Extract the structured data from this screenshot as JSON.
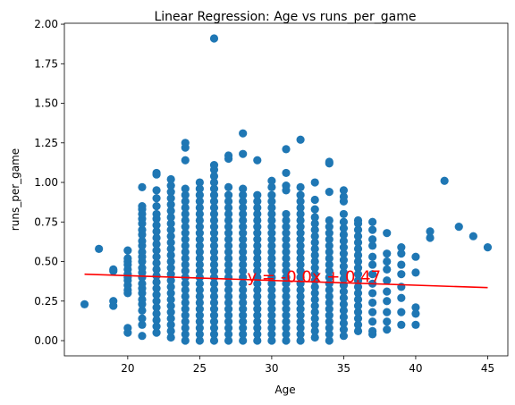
{
  "chart_data": {
    "type": "scatter",
    "title": "Linear Regression: Age vs runs_per_game",
    "xlabel": "Age",
    "ylabel": "runs_per_game",
    "xlim": [
      15.6,
      46.4
    ],
    "ylim": [
      -0.096,
      2.006
    ],
    "xticks": [
      20,
      25,
      30,
      35,
      40,
      45
    ],
    "yticks": [
      0.0,
      0.25,
      0.5,
      0.75,
      1.0,
      1.25,
      1.5,
      1.75,
      2.0
    ],
    "xtick_labels": [
      "20",
      "25",
      "30",
      "35",
      "40",
      "45"
    ],
    "ytick_labels": [
      "0.00",
      "0.25",
      "0.50",
      "0.75",
      "1.00",
      "1.25",
      "1.50",
      "1.75",
      "2.00"
    ],
    "grid": false,
    "point_color": "#1f77b4",
    "line_color": "#ff0000",
    "annotation": {
      "text": "y = -0.0x + 0.47",
      "x": 28.3,
      "y": 0.37,
      "color": "#ff0000"
    },
    "regression_line": {
      "x": [
        17,
        45
      ],
      "y": [
        0.42,
        0.335
      ]
    },
    "columns": [
      {
        "x": 17,
        "values": [
          0.23
        ]
      },
      {
        "x": 18,
        "values": [
          0.58
        ]
      },
      {
        "x": 19,
        "values": [
          0.22,
          0.25,
          0.44,
          0.45
        ]
      },
      {
        "x": 20,
        "values": [
          0.05,
          0.08,
          0.3,
          0.32,
          0.35,
          0.38,
          0.4,
          0.42,
          0.45,
          0.48,
          0.5,
          0.52,
          0.57
        ]
      },
      {
        "x": 21,
        "values": [
          0.03,
          0.1,
          0.14,
          0.19,
          0.23,
          0.26,
          0.3,
          0.33,
          0.36,
          0.4,
          0.43,
          0.46,
          0.5,
          0.53,
          0.56,
          0.6,
          0.63,
          0.67,
          0.7,
          0.74,
          0.77,
          0.8,
          0.83,
          0.85,
          0.97
        ]
      },
      {
        "x": 22,
        "values": [
          0.05,
          0.09,
          0.13,
          0.17,
          0.21,
          0.25,
          0.29,
          0.33,
          0.37,
          0.41,
          0.45,
          0.49,
          0.53,
          0.57,
          0.61,
          0.65,
          0.69,
          0.73,
          0.77,
          0.8,
          0.85,
          0.9,
          0.95,
          1.05,
          1.06
        ]
      },
      {
        "x": 23,
        "values": [
          0.02,
          0.06,
          0.1,
          0.14,
          0.18,
          0.22,
          0.26,
          0.3,
          0.34,
          0.38,
          0.42,
          0.46,
          0.5,
          0.54,
          0.58,
          0.62,
          0.66,
          0.7,
          0.74,
          0.78,
          0.82,
          0.86,
          0.9,
          0.94,
          0.98,
          1.02
        ]
      },
      {
        "x": 24,
        "values": [
          0.0,
          0.04,
          0.08,
          0.12,
          0.16,
          0.2,
          0.24,
          0.28,
          0.32,
          0.36,
          0.4,
          0.44,
          0.48,
          0.52,
          0.56,
          0.6,
          0.64,
          0.68,
          0.72,
          0.76,
          0.8,
          0.84,
          0.88,
          0.92,
          0.96,
          1.14,
          1.22,
          1.25
        ]
      },
      {
        "x": 25,
        "values": [
          0.0,
          0.04,
          0.08,
          0.12,
          0.16,
          0.2,
          0.24,
          0.28,
          0.32,
          0.36,
          0.4,
          0.44,
          0.48,
          0.52,
          0.56,
          0.6,
          0.64,
          0.68,
          0.72,
          0.76,
          0.8,
          0.84,
          0.88,
          0.92,
          0.96,
          1.0
        ]
      },
      {
        "x": 26,
        "values": [
          0.0,
          0.04,
          0.08,
          0.12,
          0.16,
          0.2,
          0.24,
          0.28,
          0.32,
          0.36,
          0.4,
          0.44,
          0.48,
          0.52,
          0.56,
          0.6,
          0.64,
          0.68,
          0.72,
          0.76,
          0.8,
          0.84,
          0.88,
          0.92,
          0.96,
          1.0,
          1.04,
          1.08,
          1.11,
          1.91
        ]
      },
      {
        "x": 27,
        "values": [
          0.0,
          0.04,
          0.08,
          0.12,
          0.16,
          0.2,
          0.24,
          0.28,
          0.32,
          0.36,
          0.4,
          0.44,
          0.48,
          0.52,
          0.56,
          0.6,
          0.64,
          0.68,
          0.72,
          0.76,
          0.8,
          0.84,
          0.88,
          0.92,
          0.97,
          1.15,
          1.17
        ]
      },
      {
        "x": 28,
        "values": [
          0.0,
          0.04,
          0.08,
          0.12,
          0.16,
          0.2,
          0.24,
          0.28,
          0.32,
          0.36,
          0.4,
          0.44,
          0.48,
          0.52,
          0.56,
          0.6,
          0.64,
          0.68,
          0.72,
          0.76,
          0.8,
          0.84,
          0.88,
          0.92,
          0.96,
          1.18,
          1.31
        ]
      },
      {
        "x": 29,
        "values": [
          0.0,
          0.04,
          0.08,
          0.12,
          0.16,
          0.2,
          0.24,
          0.28,
          0.32,
          0.36,
          0.4,
          0.44,
          0.48,
          0.52,
          0.56,
          0.6,
          0.64,
          0.68,
          0.72,
          0.76,
          0.8,
          0.84,
          0.88,
          0.92,
          1.14
        ]
      },
      {
        "x": 30,
        "values": [
          0.0,
          0.04,
          0.08,
          0.12,
          0.16,
          0.2,
          0.24,
          0.28,
          0.32,
          0.36,
          0.4,
          0.44,
          0.48,
          0.52,
          0.56,
          0.6,
          0.64,
          0.68,
          0.72,
          0.76,
          0.8,
          0.84,
          0.88,
          0.92,
          0.97,
          1.01
        ]
      },
      {
        "x": 31,
        "values": [
          0.0,
          0.04,
          0.08,
          0.12,
          0.16,
          0.2,
          0.24,
          0.28,
          0.32,
          0.36,
          0.4,
          0.44,
          0.48,
          0.52,
          0.56,
          0.6,
          0.64,
          0.68,
          0.72,
          0.76,
          0.8,
          0.95,
          0.98,
          1.06,
          1.21
        ]
      },
      {
        "x": 32,
        "values": [
          0.0,
          0.04,
          0.08,
          0.12,
          0.16,
          0.2,
          0.24,
          0.28,
          0.32,
          0.36,
          0.4,
          0.44,
          0.48,
          0.52,
          0.56,
          0.6,
          0.64,
          0.68,
          0.72,
          0.76,
          0.8,
          0.84,
          0.88,
          0.92,
          0.97,
          1.27
        ]
      },
      {
        "x": 33,
        "values": [
          0.02,
          0.06,
          0.1,
          0.14,
          0.18,
          0.22,
          0.26,
          0.3,
          0.34,
          0.38,
          0.42,
          0.46,
          0.5,
          0.54,
          0.58,
          0.62,
          0.66,
          0.7,
          0.74,
          0.78,
          0.83,
          0.89,
          1.0
        ]
      },
      {
        "x": 34,
        "values": [
          0.0,
          0.04,
          0.08,
          0.12,
          0.16,
          0.2,
          0.24,
          0.28,
          0.32,
          0.36,
          0.4,
          0.44,
          0.48,
          0.52,
          0.56,
          0.6,
          0.64,
          0.68,
          0.72,
          0.76,
          0.94,
          1.12,
          1.13
        ]
      },
      {
        "x": 35,
        "values": [
          0.03,
          0.07,
          0.11,
          0.15,
          0.19,
          0.23,
          0.27,
          0.31,
          0.35,
          0.39,
          0.43,
          0.47,
          0.51,
          0.55,
          0.59,
          0.63,
          0.67,
          0.71,
          0.75,
          0.8,
          0.88,
          0.91,
          0.95
        ]
      },
      {
        "x": 36,
        "values": [
          0.06,
          0.1,
          0.14,
          0.18,
          0.22,
          0.26,
          0.3,
          0.34,
          0.38,
          0.42,
          0.46,
          0.5,
          0.54,
          0.58,
          0.62,
          0.66,
          0.7,
          0.74,
          0.76
        ]
      },
      {
        "x": 37,
        "values": [
          0.04,
          0.06,
          0.12,
          0.18,
          0.24,
          0.3,
          0.36,
          0.42,
          0.48,
          0.53,
          0.6,
          0.64,
          0.7,
          0.75
        ]
      },
      {
        "x": 38,
        "values": [
          0.07,
          0.12,
          0.18,
          0.25,
          0.31,
          0.38,
          0.45,
          0.5,
          0.55,
          0.68
        ]
      },
      {
        "x": 39,
        "values": [
          0.1,
          0.18,
          0.27,
          0.34,
          0.42,
          0.48,
          0.55,
          0.59
        ]
      },
      {
        "x": 40,
        "values": [
          0.1,
          0.17,
          0.21,
          0.43,
          0.53
        ]
      },
      {
        "x": 41,
        "values": [
          0.65,
          0.69
        ]
      },
      {
        "x": 42,
        "values": [
          1.01
        ]
      },
      {
        "x": 43,
        "values": [
          0.72
        ]
      },
      {
        "x": 44,
        "values": [
          0.66
        ]
      },
      {
        "x": 45,
        "values": [
          0.59
        ]
      }
    ]
  }
}
